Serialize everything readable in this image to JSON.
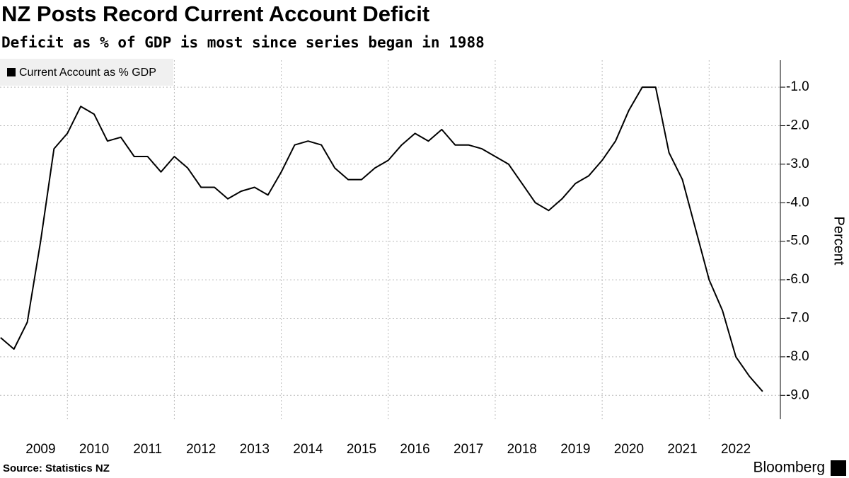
{
  "chart_data": {
    "type": "line",
    "title": "NZ Posts Record Current Account Deficit",
    "subtitle": "Deficit as % of GDP is most since series began in 1988",
    "y_label": "Percent",
    "source": "Source: Statistics NZ",
    "brand": "Bloomberg",
    "legend_position": "upper left",
    "grid": true,
    "x": [
      2008.75,
      2009,
      2009.25,
      2009.5,
      2009.75,
      2010,
      2010.25,
      2010.5,
      2010.75,
      2011,
      2011.25,
      2011.5,
      2011.75,
      2012,
      2012.25,
      2012.5,
      2012.75,
      2013,
      2013.25,
      2013.5,
      2013.75,
      2014,
      2014.25,
      2014.5,
      2014.75,
      2015,
      2015.25,
      2015.5,
      2015.75,
      2016,
      2016.25,
      2016.5,
      2016.75,
      2017,
      2017.25,
      2017.5,
      2017.75,
      2018,
      2018.25,
      2018.5,
      2018.75,
      2019,
      2019.25,
      2019.5,
      2019.75,
      2020,
      2020.25,
      2020.5,
      2020.75,
      2021,
      2021.25,
      2021.5,
      2021.75,
      2022,
      2022.25,
      2022.5,
      2022.75,
      2023
    ],
    "series": [
      {
        "name": "Current Account as % GDP",
        "color": "#000000",
        "values": [
          -7.5,
          -7.8,
          -7.1,
          -5.0,
          -2.6,
          -2.2,
          -1.5,
          -1.7,
          -2.4,
          -2.3,
          -2.8,
          -2.8,
          -3.2,
          -2.8,
          -3.1,
          -3.6,
          -3.6,
          -3.9,
          -3.7,
          -3.6,
          -3.8,
          -3.2,
          -2.5,
          -2.4,
          -2.5,
          -3.1,
          -3.4,
          -3.4,
          -3.1,
          -2.9,
          -2.5,
          -2.2,
          -2.4,
          -2.1,
          -2.5,
          -2.5,
          -2.6,
          -2.8,
          -3.0,
          -3.5,
          -4.0,
          -4.2,
          -3.9,
          -3.5,
          -3.3,
          -2.9,
          -2.4,
          -1.6,
          -1.0,
          -1.0,
          -2.7,
          -3.4,
          -4.7,
          -6.0,
          -6.8,
          -8.0,
          -8.5,
          -8.9
        ]
      }
    ],
    "xlim": [
      2008.74,
      2023.16
    ],
    "xticks": [
      {
        "value": 2009.5,
        "label": "2009"
      },
      {
        "value": 2010.5,
        "label": "2010"
      },
      {
        "value": 2011.5,
        "label": "2011"
      },
      {
        "value": 2012.5,
        "label": "2012"
      },
      {
        "value": 2013.5,
        "label": "2013"
      },
      {
        "value": 2014.5,
        "label": "2014"
      },
      {
        "value": 2015.5,
        "label": "2015"
      },
      {
        "value": 2016.5,
        "label": "2016"
      },
      {
        "value": 2017.5,
        "label": "2017"
      },
      {
        "value": 2018.5,
        "label": "2018"
      },
      {
        "value": 2019.5,
        "label": "2019"
      },
      {
        "value": 2020.5,
        "label": "2020"
      },
      {
        "value": 2021.5,
        "label": "2021"
      },
      {
        "value": 2022.5,
        "label": "2022"
      }
    ],
    "xgrid_lines": [
      2010,
      2012,
      2014,
      2016,
      2018,
      2020,
      2022
    ],
    "ylim": [
      -9.62,
      -0.3
    ],
    "yticks": [
      {
        "value": -9,
        "label": "-9.0"
      },
      {
        "value": -8,
        "label": "-8.0"
      },
      {
        "value": -7,
        "label": "-7.0"
      },
      {
        "value": -6,
        "label": "-6.0"
      },
      {
        "value": -5,
        "label": "-5.0"
      },
      {
        "value": -4,
        "label": "-4.0"
      },
      {
        "value": -3,
        "label": "-3.0"
      },
      {
        "value": -2,
        "label": "-2.0"
      },
      {
        "value": -1,
        "label": "-1.0"
      }
    ]
  }
}
